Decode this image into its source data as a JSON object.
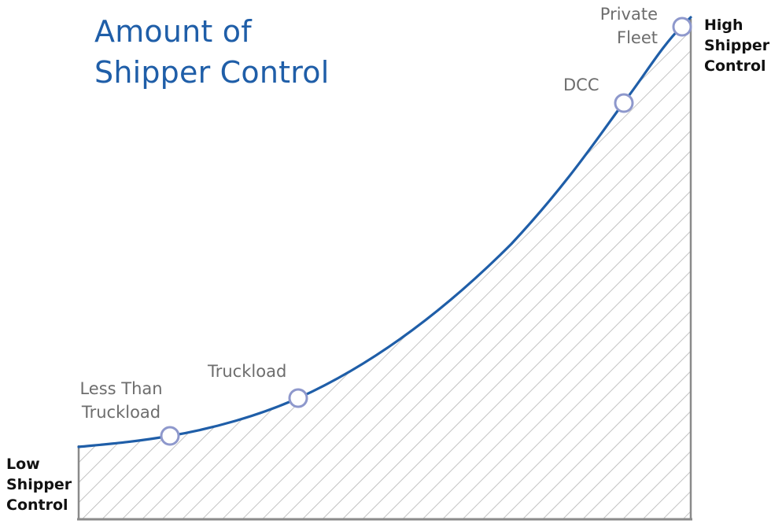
{
  "title": {
    "line1": "Amount of",
    "line2": "Shipper Control"
  },
  "axis_ends": {
    "low": [
      "Low",
      "Shipper",
      "Control"
    ],
    "high": [
      "High",
      "Shipper",
      "Control"
    ]
  },
  "points": [
    {
      "name": "less-than-truckload",
      "lines": [
        "Less Than",
        "Truckload"
      ]
    },
    {
      "name": "truckload",
      "lines": [
        "Truckload"
      ]
    },
    {
      "name": "dcc",
      "lines": [
        "DCC"
      ]
    },
    {
      "name": "private-fleet",
      "lines": [
        "Private",
        "Fleet"
      ]
    }
  ],
  "colors": {
    "title": "#1f5ea8",
    "curve": "#1f5ea8",
    "marker_stroke": "#8e98cc",
    "hatch": "#b4b4b4",
    "axis": "#8a8a8a"
  }
}
